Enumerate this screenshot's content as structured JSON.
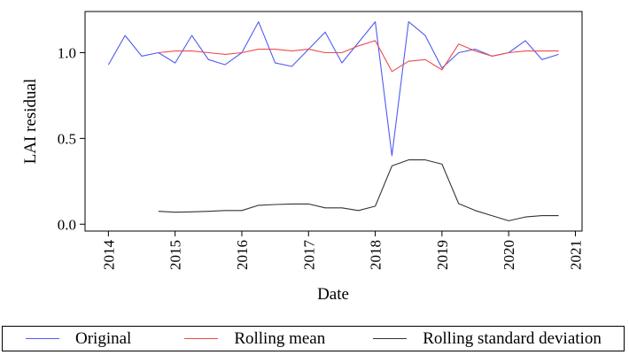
{
  "chart_data": {
    "type": "line",
    "xlabel": "Date",
    "ylabel": "LAI residual",
    "xlim": [
      2013.65,
      2021.1
    ],
    "ylim": [
      -0.04,
      1.24
    ],
    "x_ticks": [
      "2014",
      "2015",
      "2016",
      "2017",
      "2018",
      "2019",
      "2020",
      "2021"
    ],
    "x_tick_values": [
      2014,
      2015,
      2016,
      2017,
      2018,
      2019,
      2020,
      2021
    ],
    "y_ticks": [
      "0.0",
      "0.5",
      "1.0"
    ],
    "y_tick_values": [
      0.0,
      0.5,
      1.0
    ],
    "grid": false,
    "legend_position": "bottom",
    "series": [
      {
        "name": "Original",
        "color": "#4f5bf0",
        "x": [
          2014.0,
          2014.25,
          2014.5,
          2014.75,
          2015.0,
          2015.25,
          2015.5,
          2015.75,
          2016.0,
          2016.25,
          2016.5,
          2016.75,
          2017.0,
          2017.25,
          2017.5,
          2017.75,
          2018.0,
          2018.25,
          2018.5,
          2018.75,
          2019.0,
          2019.25,
          2019.5,
          2019.75,
          2020.0,
          2020.25,
          2020.5,
          2020.75
        ],
        "values": [
          0.93,
          1.1,
          0.98,
          1.0,
          0.94,
          1.1,
          0.96,
          0.93,
          1.0,
          1.18,
          0.94,
          0.92,
          1.02,
          1.12,
          0.94,
          1.06,
          1.18,
          0.4,
          1.18,
          1.1,
          0.91,
          1.0,
          1.02,
          0.98,
          1.0,
          1.07,
          0.96,
          0.99
        ]
      },
      {
        "name": "Rolling mean",
        "color": "#f04a4a",
        "x": [
          2014.75,
          2015.0,
          2015.25,
          2015.5,
          2015.75,
          2016.0,
          2016.25,
          2016.5,
          2016.75,
          2017.0,
          2017.25,
          2017.5,
          2017.75,
          2018.0,
          2018.25,
          2018.5,
          2018.75,
          2019.0,
          2019.25,
          2019.5,
          2019.75,
          2020.0,
          2020.25,
          2020.5,
          2020.75
        ],
        "values": [
          1.0,
          1.01,
          1.01,
          1.0,
          0.99,
          1.0,
          1.02,
          1.02,
          1.01,
          1.02,
          1.0,
          1.0,
          1.04,
          1.07,
          0.89,
          0.95,
          0.96,
          0.9,
          1.05,
          1.01,
          0.98,
          1.0,
          1.01,
          1.01,
          1.01
        ]
      },
      {
        "name": "Rolling standard deviation",
        "color": "#333333",
        "x": [
          2014.75,
          2015.0,
          2015.25,
          2015.5,
          2015.75,
          2016.0,
          2016.25,
          2016.5,
          2016.75,
          2017.0,
          2017.25,
          2017.5,
          2017.75,
          2018.0,
          2018.25,
          2018.5,
          2018.75,
          2019.0,
          2019.25,
          2019.5,
          2019.75,
          2020.0,
          2020.25,
          2020.5,
          2020.75
        ],
        "values": [
          0.075,
          0.07,
          0.072,
          0.075,
          0.08,
          0.08,
          0.11,
          0.115,
          0.118,
          0.118,
          0.095,
          0.095,
          0.08,
          0.105,
          0.34,
          0.375,
          0.375,
          0.35,
          0.12,
          0.08,
          0.05,
          0.02,
          0.042,
          0.05,
          0.05
        ]
      }
    ]
  }
}
